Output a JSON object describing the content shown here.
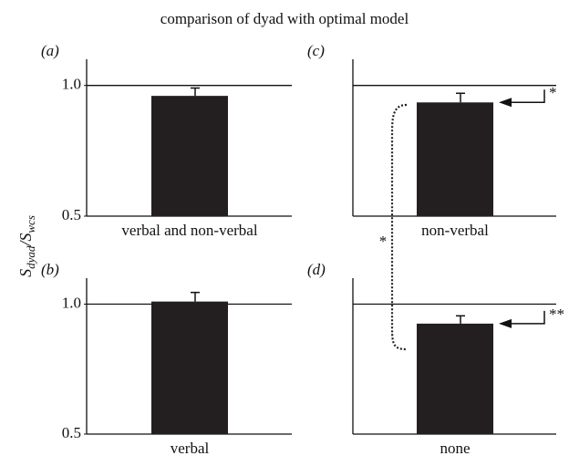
{
  "figure": {
    "title": "comparison of dyad with optimal model",
    "y_label": [
      "S",
      "dyad",
      "/S",
      "wcs"
    ],
    "comparison_annotation": "*"
  },
  "chart_data": [
    {
      "type": "bar",
      "panel_label": "(a)",
      "categories": [
        "verbal and non-verbal"
      ],
      "values": [
        0.96
      ],
      "errors": [
        0.03
      ],
      "color": "#231f20",
      "ylim": [
        0.5,
        1.1
      ],
      "yticks": [
        {
          "value": 0.5,
          "label": "0.5"
        },
        {
          "value": 1,
          "label": "1.0"
        }
      ],
      "hline": 1
    },
    {
      "type": "bar",
      "panel_label": "(b)",
      "categories": [
        "verbal"
      ],
      "values": [
        1.01
      ],
      "errors": [
        0.035
      ],
      "color": "#231f20",
      "ylim": [
        0.5,
        1.1
      ],
      "yticks": [
        {
          "value": 0.5,
          "label": "0.5"
        },
        {
          "value": 1,
          "label": "1.0"
        }
      ],
      "hline": 1
    },
    {
      "type": "bar",
      "panel_label": "(c)",
      "categories": [
        "non-verbal"
      ],
      "values": [
        0.935
      ],
      "errors": [
        0.035
      ],
      "color": "#231f20",
      "ylim": [
        0.5,
        1.1
      ],
      "hline": 1,
      "annotation": "*"
    },
    {
      "type": "bar",
      "panel_label": "(d)",
      "categories": [
        "none"
      ],
      "values": [
        0.925
      ],
      "errors": [
        0.03
      ],
      "color": "#231f20",
      "ylim": [
        0.5,
        1.1
      ],
      "hline": 1,
      "annotation": "**"
    }
  ]
}
